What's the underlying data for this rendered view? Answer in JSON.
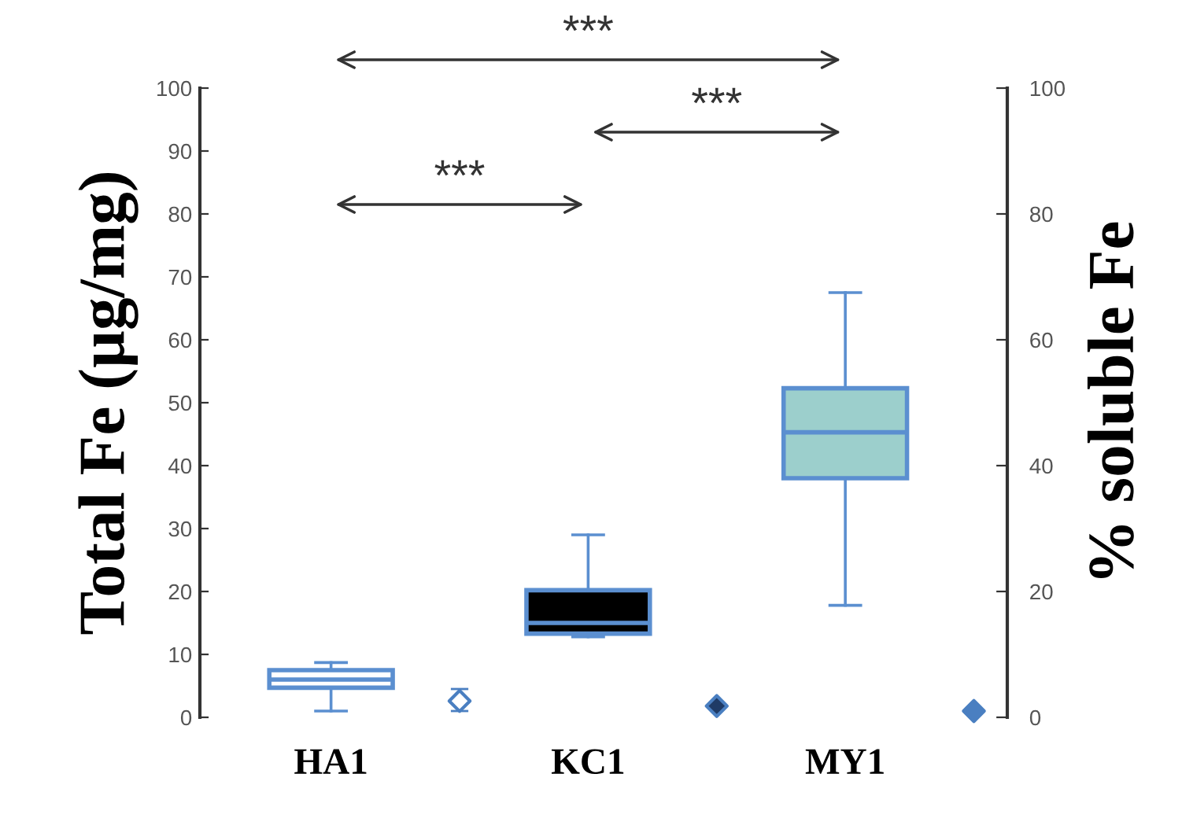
{
  "chart_data": {
    "type": "box",
    "categories": [
      "HA1",
      null,
      "KC1",
      null,
      "MY1",
      null
    ],
    "ylabel": "Total Fe (µg/mg)",
    "y2label": "% soluble Fe",
    "color": "#5b8fd0",
    "colors": [
      "#ffffff",
      null,
      "#000000",
      null,
      "#9ccfcc",
      null
    ],
    "boxes": [
      {
        "low": 1,
        "q1": 4.7,
        "median": 6,
        "q3": 7.5,
        "high": 8.7
      },
      null,
      {
        "low": 12.8,
        "q1": 13.3,
        "median": 15,
        "q3": 20.2,
        "high": 29
      },
      null,
      {
        "low": 17.8,
        "q1": 38,
        "median": 45.3,
        "q3": 52.3,
        "high": 67.5
      },
      null
    ],
    "series": [
      {
        "type": "scatter",
        "axis": "y2",
        "values": [
          null,
          2.6,
          null,
          1.8,
          null,
          1
        ],
        "errors": [
          null,
          [
            1,
            4.5
          ],
          null,
          null,
          null,
          null
        ],
        "color": "#4a7fc1",
        "colors": [
          null,
          "#ffffff",
          null,
          "#1f3b66",
          null,
          "#4a7fc1"
        ]
      }
    ],
    "ylim": [
      0,
      100
    ],
    "yticks": [
      0,
      10,
      20,
      30,
      40,
      50,
      60,
      70,
      80,
      90,
      100
    ],
    "y2lim": [
      0,
      100
    ],
    "y2ticks": [
      0,
      20,
      40,
      60,
      80,
      100
    ],
    "marker": "diamond",
    "grid": false,
    "annotations": [
      "***",
      "***",
      "***"
    ]
  }
}
